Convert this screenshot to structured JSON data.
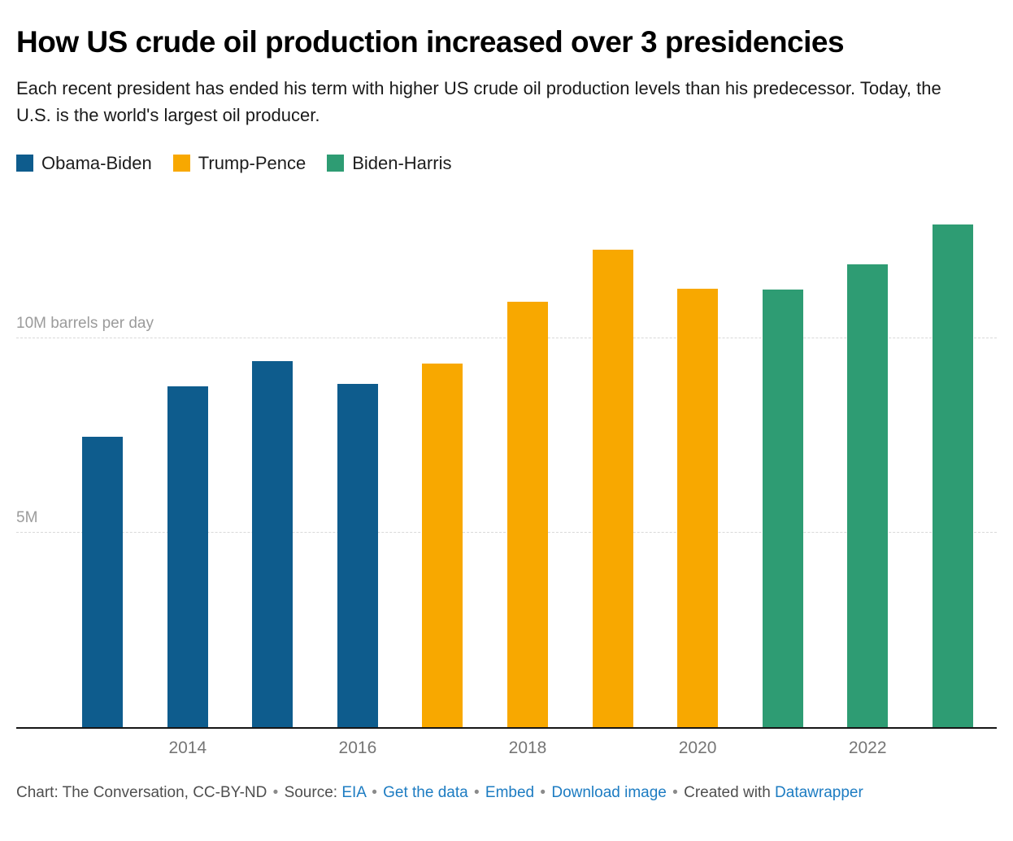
{
  "title": "How US crude oil production increased over 3 presidencies",
  "subtitle": "Each recent president has ended his term with higher US crude oil production levels than his predecessor. Today, the U.S. is the world's largest oil producer.",
  "colors": {
    "obama": "#0e5c8d",
    "trump": "#f8a800",
    "biden": "#2e9c73",
    "link": "#1d7cc2"
  },
  "legend": {
    "items": [
      {
        "label": "Obama-Biden",
        "color_key": "obama"
      },
      {
        "label": "Trump-Pence",
        "color_key": "trump"
      },
      {
        "label": "Biden-Harris",
        "color_key": "biden"
      }
    ]
  },
  "chart_data": {
    "type": "bar",
    "title": "How US crude oil production increased over 3 presidencies",
    "unit": "million barrels per day",
    "x": [
      2013,
      2014,
      2015,
      2016,
      2017,
      2018,
      2019,
      2020,
      2021,
      2022,
      2023
    ],
    "values": [
      7.47,
      8.76,
      9.42,
      8.83,
      9.35,
      10.95,
      12.29,
      11.28,
      11.25,
      11.91,
      12.93
    ],
    "series_by_presidency": [
      {
        "name": "Obama-Biden",
        "years": [
          2013,
          2014,
          2015,
          2016
        ],
        "color_key": "obama"
      },
      {
        "name": "Trump-Pence",
        "years": [
          2017,
          2018,
          2019,
          2020
        ],
        "color_key": "trump"
      },
      {
        "name": "Biden-Harris",
        "years": [
          2021,
          2022,
          2023
        ],
        "color_key": "biden"
      }
    ],
    "x_tick_labels": [
      "2014",
      "2016",
      "2018",
      "2020",
      "2022"
    ],
    "gridlines": [
      {
        "value": 5,
        "label": "5M"
      },
      {
        "value": 10,
        "label": "10M barrels per day"
      }
    ],
    "ylim": [
      0,
      13.4
    ],
    "grid": true,
    "legend_position": "top"
  },
  "footer": {
    "credit": "Chart: The Conversation, CC-BY-ND",
    "separator": "•",
    "source_label": "Source:",
    "source_link": "EIA",
    "get_data_link": "Get the data",
    "embed_link": "Embed",
    "download_link": "Download image",
    "created_with": "Created with",
    "tool_link": "Datawrapper"
  }
}
